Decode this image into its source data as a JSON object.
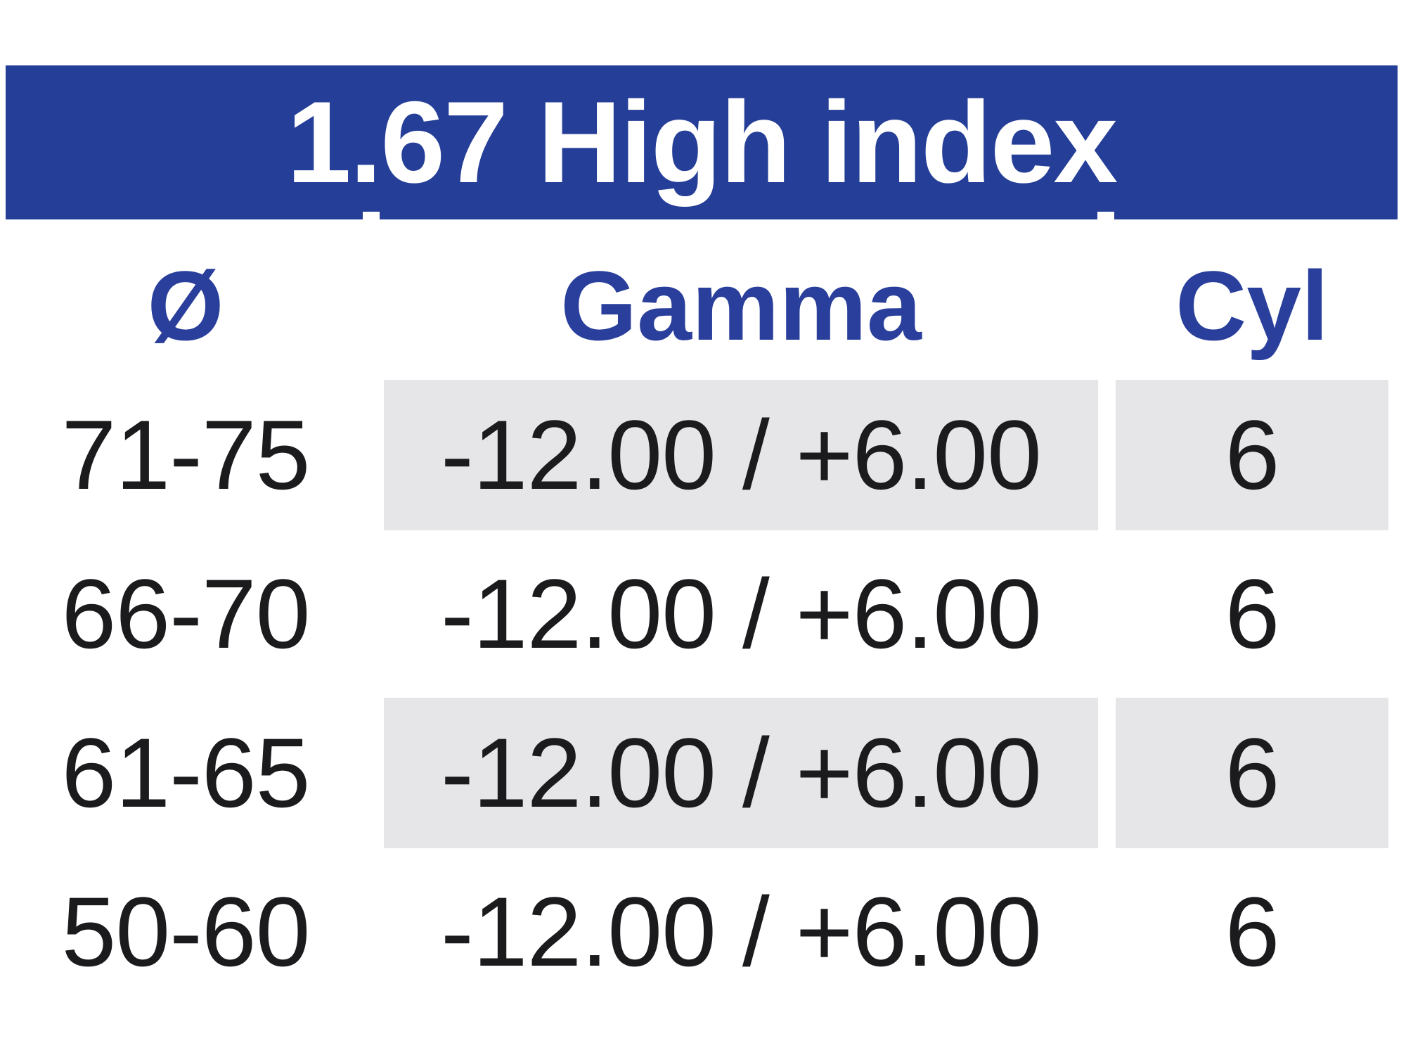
{
  "title": "1.67 High index",
  "table": {
    "columns": [
      {
        "id": "diameter",
        "label": "Ø"
      },
      {
        "id": "gamma",
        "label": "Gamma"
      },
      {
        "id": "cyl",
        "label": "Cyl"
      }
    ],
    "rows": [
      {
        "diameter": "71-75",
        "gamma": "-12.00 / +6.00",
        "cyl": "6"
      },
      {
        "diameter": "66-70",
        "gamma": "-12.00 / +6.00",
        "cyl": "6"
      },
      {
        "diameter": "61-65",
        "gamma": "-12.00 / +6.00",
        "cyl": "6"
      },
      {
        "diameter": "50-60",
        "gamma": "-12.00 / +6.00",
        "cyl": "6"
      }
    ]
  },
  "colors": {
    "banner_blue": "#253E97",
    "header_text_blue": "#2A3F9B",
    "row_shade_gray": "#E6E6E8",
    "body_text": "#1B1B1E",
    "background": "#FFFFFF",
    "title_text": "#FFFFFF"
  }
}
